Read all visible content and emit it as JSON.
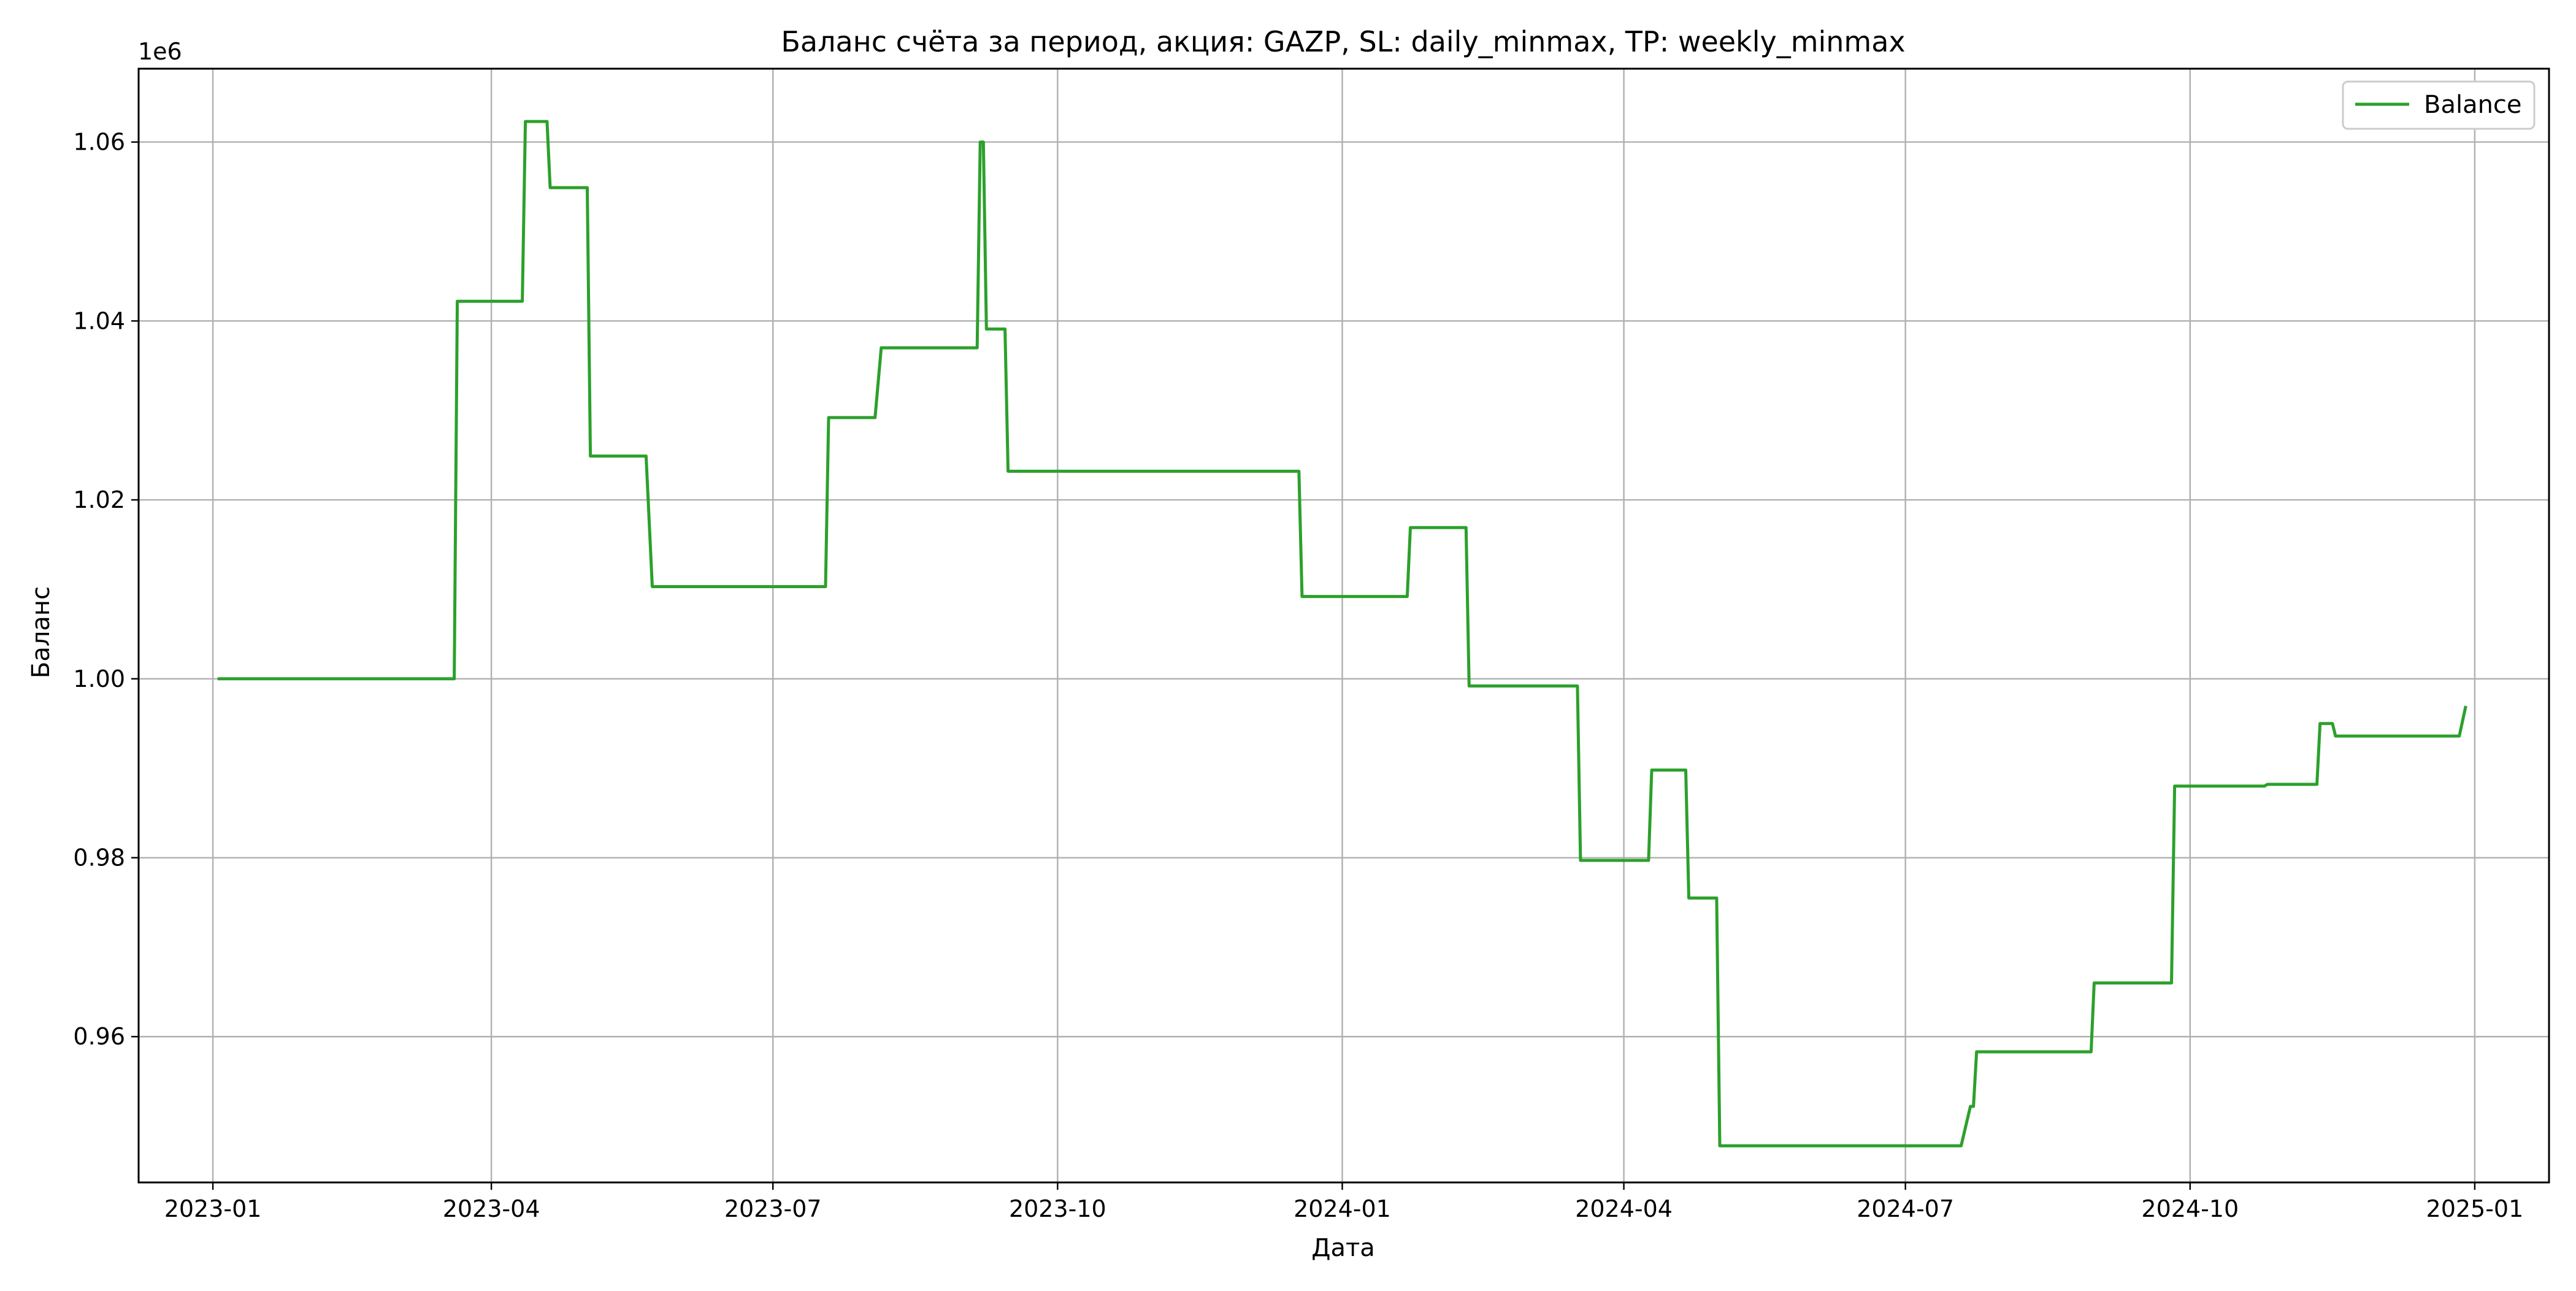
{
  "chart_data": {
    "type": "line",
    "title": "Баланс счёта за период, акция: GAZP, SL: daily_minmax, TP: weekly_minmax",
    "xlabel": "Дата",
    "ylabel": "Баланс",
    "y_offset_label": "1e6",
    "x_axis_kind": "date",
    "xlim": [
      "2022-12-08",
      "2025-01-25"
    ],
    "ylim": [
      0.9437,
      1.0682
    ],
    "y_scale_factor": 1000000,
    "grid": true,
    "legend_position": "top-right",
    "x_ticks": [
      {
        "date": "2023-01-01",
        "label": "2023-01"
      },
      {
        "date": "2023-04-01",
        "label": "2023-04"
      },
      {
        "date": "2023-07-01",
        "label": "2023-07"
      },
      {
        "date": "2023-10-01",
        "label": "2023-10"
      },
      {
        "date": "2024-01-01",
        "label": "2024-01"
      },
      {
        "date": "2024-04-01",
        "label": "2024-04"
      },
      {
        "date": "2024-07-01",
        "label": "2024-07"
      },
      {
        "date": "2024-10-01",
        "label": "2024-10"
      },
      {
        "date": "2025-01-01",
        "label": "2025-01"
      }
    ],
    "y_ticks": [
      {
        "value": 0.96,
        "label": "0.96"
      },
      {
        "value": 0.98,
        "label": "0.98"
      },
      {
        "value": 1.0,
        "label": "1.00"
      },
      {
        "value": 1.02,
        "label": "1.02"
      },
      {
        "value": 1.04,
        "label": "1.04"
      },
      {
        "value": 1.06,
        "label": "1.06"
      }
    ],
    "series": [
      {
        "name": "Balance",
        "color": "#2ca02c",
        "points": [
          [
            "2023-01-03",
            1.0
          ],
          [
            "2023-03-20",
            1.0
          ],
          [
            "2023-03-21",
            1.0422
          ],
          [
            "2023-04-11",
            1.0422
          ],
          [
            "2023-04-12",
            1.0623
          ],
          [
            "2023-04-19",
            1.0623
          ],
          [
            "2023-04-20",
            1.0549
          ],
          [
            "2023-05-02",
            1.0549
          ],
          [
            "2023-05-03",
            1.0249
          ],
          [
            "2023-05-21",
            1.0249
          ],
          [
            "2023-05-23",
            1.0103
          ],
          [
            "2023-07-18",
            1.0103
          ],
          [
            "2023-07-19",
            1.0292
          ],
          [
            "2023-08-03",
            1.0292
          ],
          [
            "2023-08-05",
            1.037
          ],
          [
            "2023-09-05",
            1.037
          ],
          [
            "2023-09-06",
            1.06
          ],
          [
            "2023-09-07",
            1.06
          ],
          [
            "2023-09-08",
            1.0391
          ],
          [
            "2023-09-14",
            1.0391
          ],
          [
            "2023-09-15",
            1.0232
          ],
          [
            "2023-12-18",
            1.0232
          ],
          [
            "2023-12-19",
            1.0092
          ],
          [
            "2024-01-22",
            1.0092
          ],
          [
            "2024-01-23",
            1.0169
          ],
          [
            "2024-02-10",
            1.0169
          ],
          [
            "2024-02-11",
            0.9992
          ],
          [
            "2024-03-17",
            0.9992
          ],
          [
            "2024-03-18",
            0.9797
          ],
          [
            "2024-04-09",
            0.9797
          ],
          [
            "2024-04-10",
            0.9898
          ],
          [
            "2024-04-21",
            0.9898
          ],
          [
            "2024-04-22",
            0.9755
          ],
          [
            "2024-05-01",
            0.9755
          ],
          [
            "2024-05-02",
            0.9478
          ],
          [
            "2024-07-19",
            0.9478
          ],
          [
            "2024-07-22",
            0.9522
          ],
          [
            "2024-07-23",
            0.9522
          ],
          [
            "2024-07-24",
            0.9583
          ],
          [
            "2024-08-30",
            0.9583
          ],
          [
            "2024-08-31",
            0.966
          ],
          [
            "2024-09-25",
            0.966
          ],
          [
            "2024-09-26",
            0.988
          ],
          [
            "2024-10-25",
            0.988
          ],
          [
            "2024-10-26",
            0.9882
          ],
          [
            "2024-11-11",
            0.9882
          ],
          [
            "2024-11-12",
            0.995
          ],
          [
            "2024-11-16",
            0.995
          ],
          [
            "2024-11-17",
            0.9936
          ],
          [
            "2024-12-27",
            0.9936
          ],
          [
            "2024-12-29",
            0.9968
          ]
        ]
      }
    ]
  }
}
